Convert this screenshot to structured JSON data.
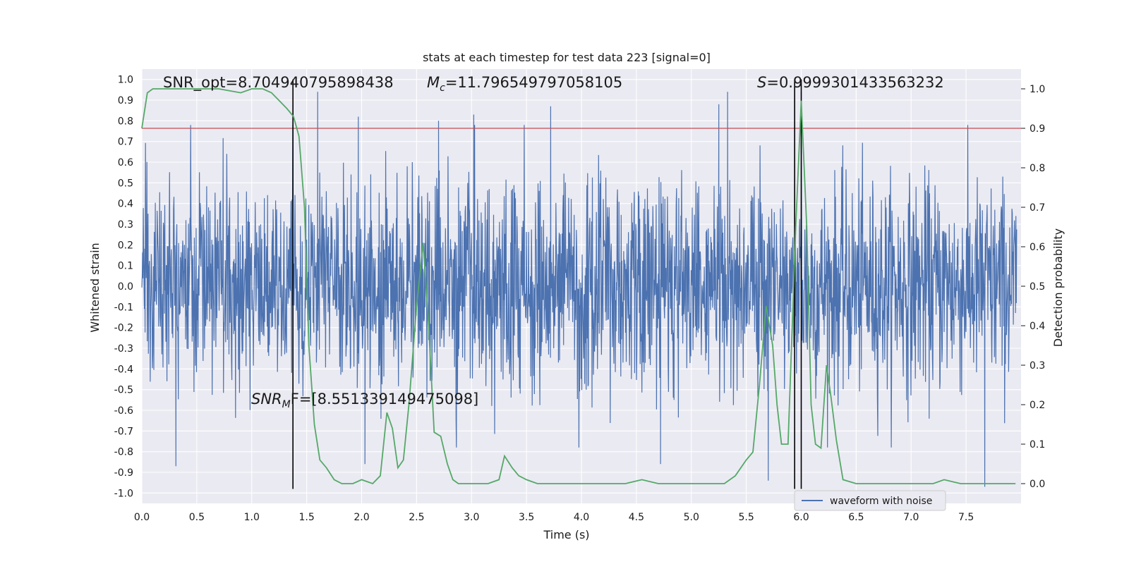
{
  "chart_data": {
    "type": "line",
    "title": "stats at each timestep for test data 223 [signal=0]",
    "xlabel": "Time (s)",
    "ylabel_left": "Whitened strain",
    "ylabel_right": "Detection probability",
    "xlim": [
      0.0,
      8.0
    ],
    "ylim_left": [
      -1.05,
      1.05
    ],
    "ylim_right": [
      -0.05,
      1.05
    ],
    "x_ticks": [
      "0.0",
      "0.5",
      "1.0",
      "1.5",
      "2.0",
      "2.5",
      "3.0",
      "3.5",
      "4.0",
      "4.5",
      "5.0",
      "5.5",
      "6.0",
      "6.5",
      "7.0",
      "7.5"
    ],
    "y_ticks_left": [
      "1.0",
      "0.9",
      "0.8",
      "0.7",
      "0.6",
      "0.5",
      "0.4",
      "0.3",
      "0.2",
      "0.1",
      "0.0",
      "-0.1",
      "-0.2",
      "-0.3",
      "-0.4",
      "-0.5",
      "-0.6",
      "-0.7",
      "-0.8",
      "-0.9",
      "-1.0"
    ],
    "y_ticks_right": [
      "1.0",
      "0.9",
      "0.8",
      "0.7",
      "0.6",
      "0.5",
      "0.4",
      "0.3",
      "0.2",
      "0.1",
      "0.0"
    ],
    "grid": true,
    "legend_placement": "lower-center",
    "legend": [
      "waveform with noise"
    ],
    "annotations": {
      "snr_opt": "SNR_opt=8.704940795898438",
      "mc_symbol": "M",
      "mc_sub": "c",
      "mc_value": "=11.796549797058105",
      "s_symbol": "S",
      "s_value": "=0.9999301433563232",
      "snr_mf_symbol": "SNR",
      "snr_mf_sub": "M",
      "snr_mf_value": "F=[8.551339149475098]"
    },
    "threshold_right": 0.9,
    "vertical_lines_x": [
      1.375,
      5.94,
      6.0
    ],
    "waveform": {
      "name": "waveform with noise",
      "noise_level_std": 0.25,
      "spikes": [
        {
          "x": 1.6,
          "y": 0.94
        },
        {
          "x": 1.97,
          "y": 0.82
        },
        {
          "x": 2.7,
          "y": 0.8
        },
        {
          "x": 3.02,
          "y": 0.83
        },
        {
          "x": 3.72,
          "y": 0.87
        },
        {
          "x": 5.25,
          "y": 0.88
        },
        {
          "x": 5.33,
          "y": 0.94
        },
        {
          "x": 6.0,
          "y": 0.94
        },
        {
          "x": 7.67,
          "y": -0.97
        },
        {
          "x": 0.31,
          "y": -0.87
        },
        {
          "x": 2.03,
          "y": -0.86
        },
        {
          "x": 5.7,
          "y": -0.94
        },
        {
          "x": 4.72,
          "y": -0.86
        }
      ]
    },
    "detection_probability": {
      "x": [
        0.0,
        0.05,
        0.1,
        0.2,
        0.3,
        0.5,
        0.7,
        0.9,
        1.0,
        1.1,
        1.18,
        1.25,
        1.32,
        1.38,
        1.43,
        1.48,
        1.52,
        1.57,
        1.62,
        1.68,
        1.75,
        1.82,
        1.92,
        2.0,
        2.1,
        2.17,
        2.23,
        2.28,
        2.33,
        2.38,
        2.43,
        2.5,
        2.56,
        2.61,
        2.66,
        2.72,
        2.78,
        2.83,
        2.88,
        2.95,
        3.05,
        3.15,
        3.25,
        3.3,
        3.37,
        3.43,
        3.5,
        3.6,
        3.7,
        3.8,
        4.0,
        4.2,
        4.4,
        4.55,
        4.7,
        4.9,
        5.1,
        5.3,
        5.4,
        5.5,
        5.56,
        5.62,
        5.68,
        5.74,
        5.78,
        5.82,
        5.88,
        5.95,
        6.0,
        6.05,
        6.09,
        6.13,
        6.18,
        6.23,
        6.27,
        6.32,
        6.38,
        6.5,
        6.6,
        6.8,
        7.0,
        7.2,
        7.3,
        7.45,
        7.6,
        7.8,
        7.95
      ],
      "y": [
        0.9,
        0.99,
        1.0,
        1.0,
        1.0,
        1.0,
        1.0,
        0.99,
        1.0,
        1.0,
        0.99,
        0.97,
        0.95,
        0.93,
        0.88,
        0.7,
        0.35,
        0.15,
        0.06,
        0.04,
        0.01,
        0.0,
        0.0,
        0.01,
        0.0,
        0.02,
        0.18,
        0.14,
        0.04,
        0.06,
        0.2,
        0.45,
        0.61,
        0.4,
        0.13,
        0.12,
        0.05,
        0.01,
        0.0,
        0.0,
        0.0,
        0.0,
        0.01,
        0.07,
        0.04,
        0.02,
        0.01,
        0.0,
        0.0,
        0.0,
        0.0,
        0.0,
        0.0,
        0.01,
        0.0,
        0.0,
        0.0,
        0.0,
        0.02,
        0.06,
        0.08,
        0.25,
        0.45,
        0.35,
        0.2,
        0.1,
        0.1,
        0.65,
        0.97,
        0.65,
        0.2,
        0.1,
        0.09,
        0.3,
        0.22,
        0.11,
        0.01,
        0.0,
        0.0,
        0.0,
        0.0,
        0.0,
        0.01,
        0.0,
        0.0,
        0.0,
        0.0
      ]
    },
    "colors": {
      "waveform": "#4c72b0",
      "detection": "#55a868",
      "threshold": "#c44e52",
      "vline": "#000000",
      "axes_bg": "#eaeaf2",
      "grid": "#ffffff"
    }
  }
}
